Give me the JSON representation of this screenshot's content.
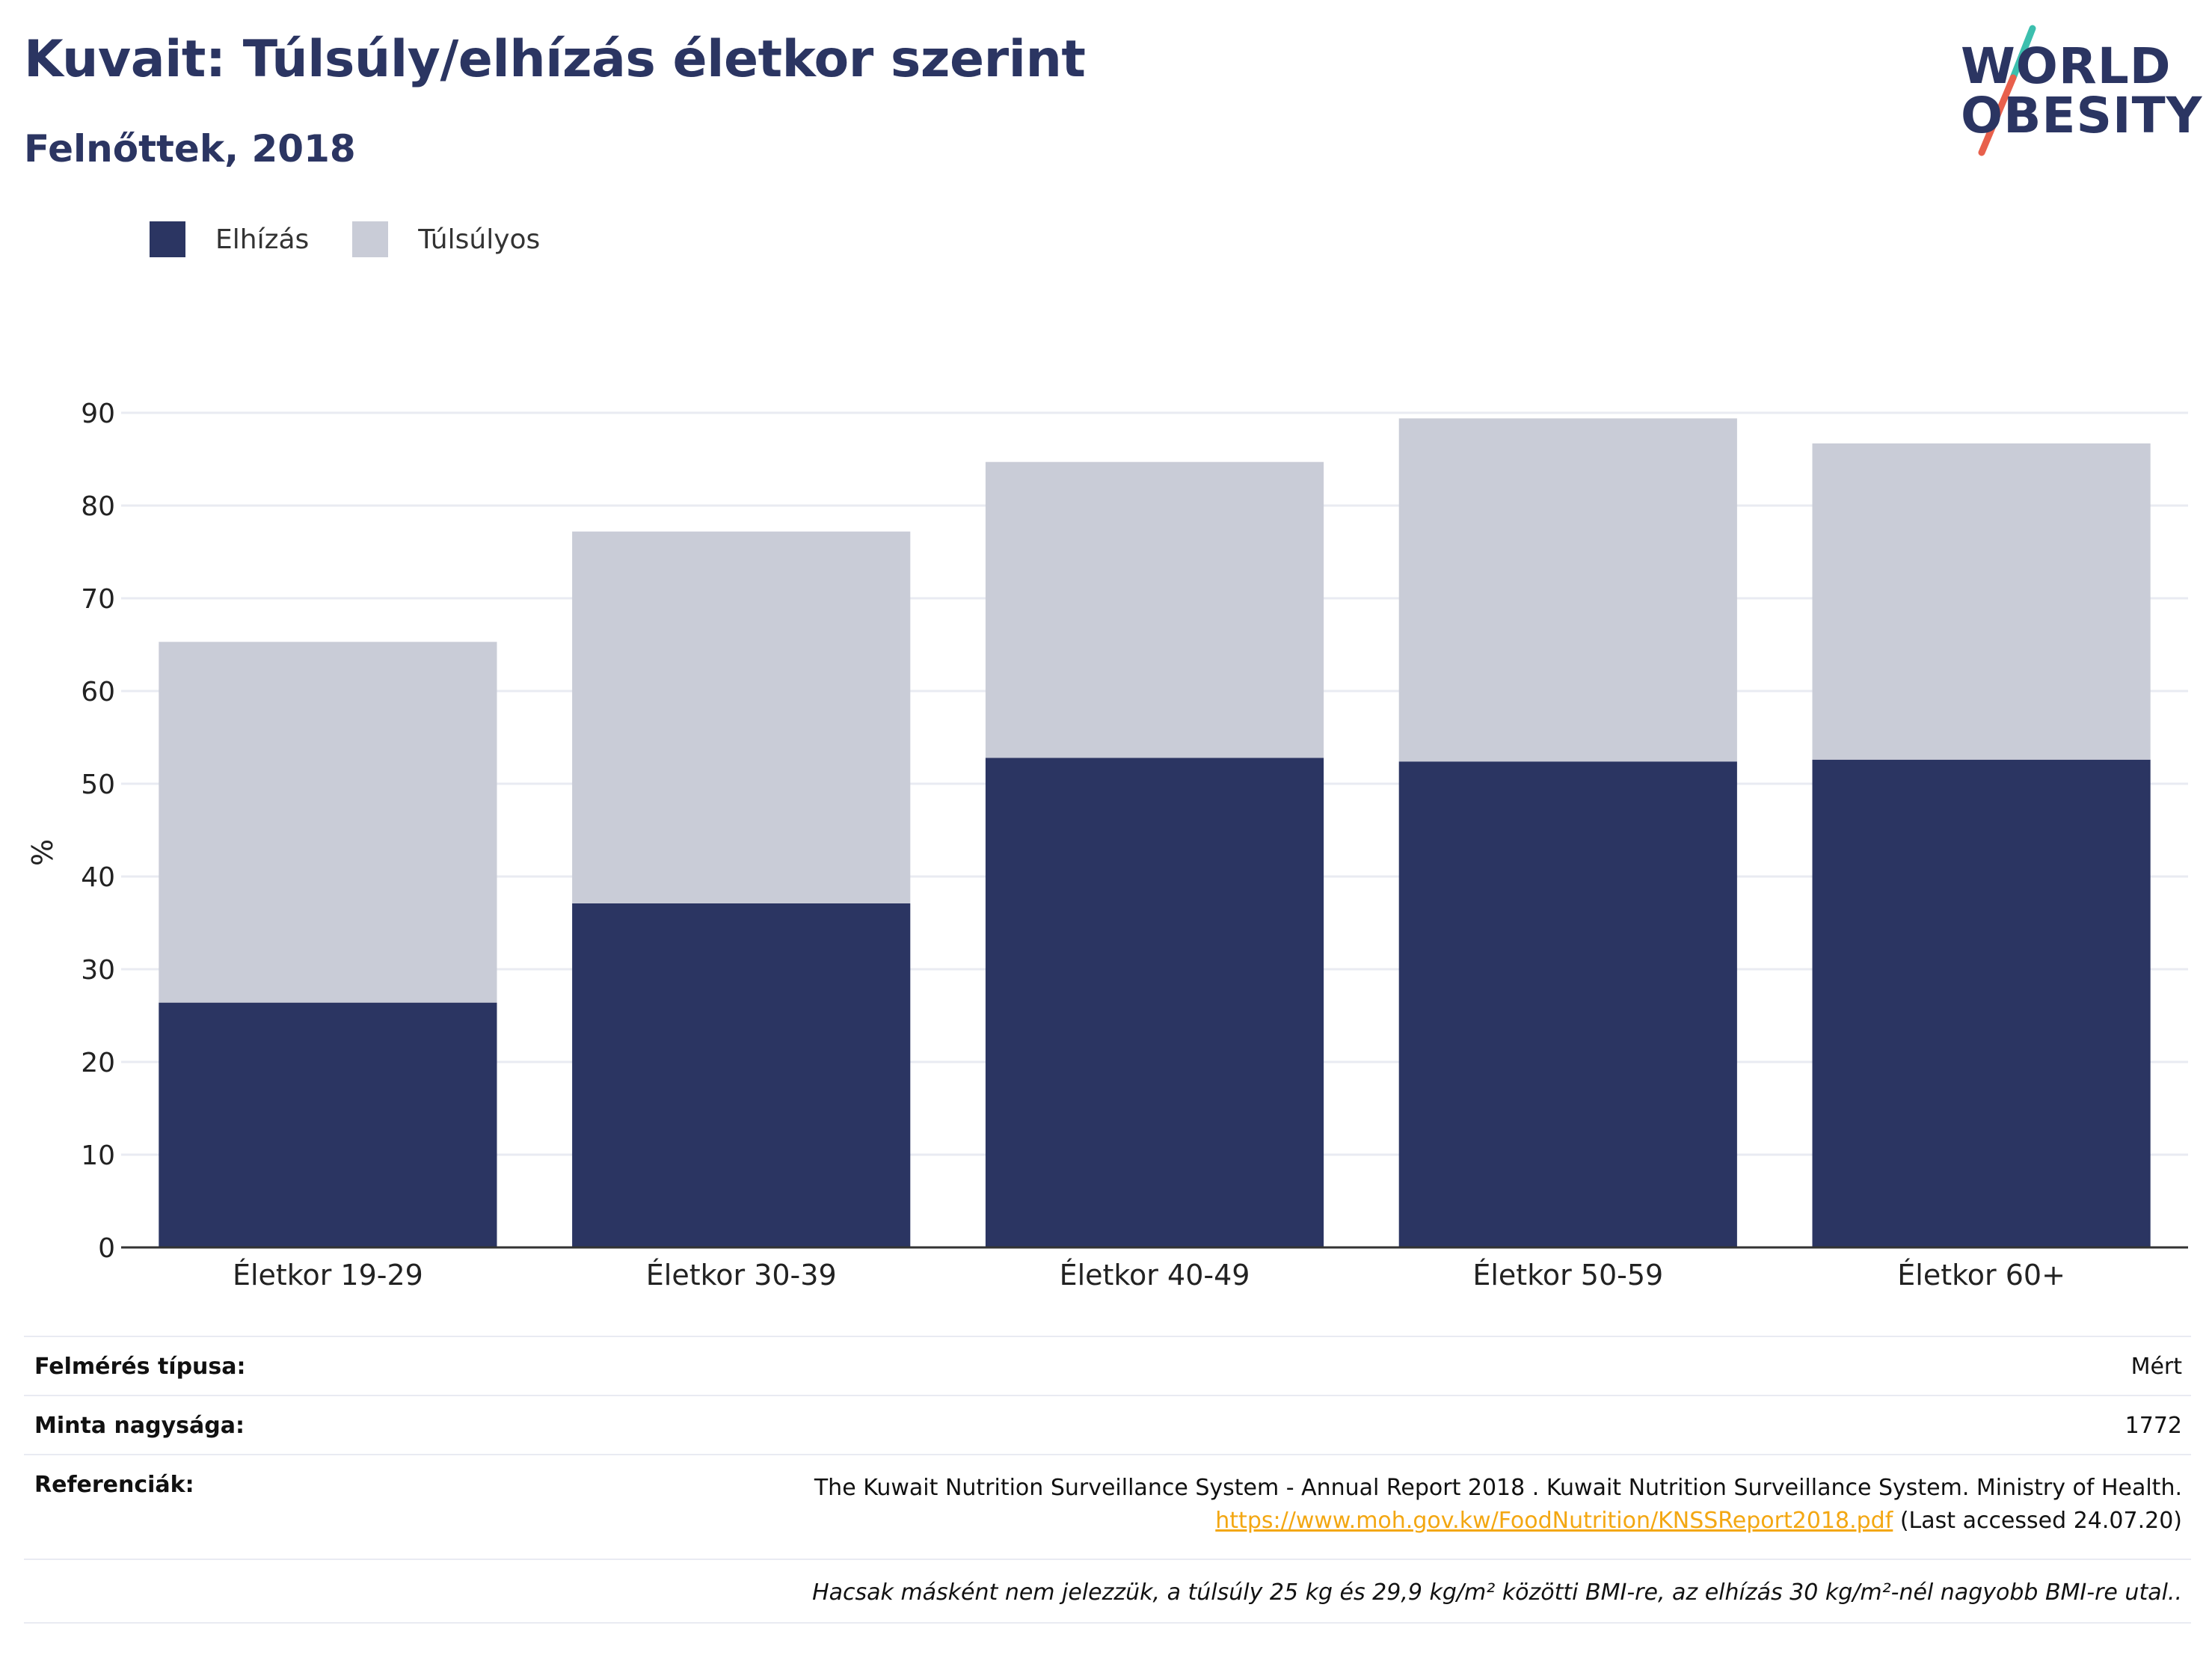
{
  "header": {
    "title": "Kuvait: Túlsúly/elhízás életkor szerint",
    "subtitle": "Felnőttek, 2018"
  },
  "logo": {
    "line1": "WORLD",
    "line2": "OBESITY",
    "colors": {
      "text": "#2b3562",
      "slash_top": "#3cbfae",
      "slash_bottom": "#e8604c"
    }
  },
  "colors": {
    "obesity": "#2b3562",
    "overweight": "#c9ccd7",
    "grid": "#e9ebf2",
    "axis": "#333333"
  },
  "chart_data": {
    "type": "bar",
    "stacked": true,
    "categories": [
      "Életkor 19-29",
      "Életkor 30-39",
      "Életkor 40-49",
      "Életkor 50-59",
      "Életkor 60+"
    ],
    "series": [
      {
        "name": "Elhízás",
        "values": [
          26.4,
          37.1,
          52.8,
          52.4,
          52.6
        ]
      },
      {
        "name": "Túlsúlyos",
        "values": [
          38.9,
          40.1,
          31.9,
          37.0,
          34.1
        ]
      }
    ],
    "ylabel": "%",
    "ylim": [
      0,
      90
    ],
    "yticks": [
      0,
      10,
      20,
      30,
      40,
      50,
      60,
      70,
      80,
      90
    ],
    "grid": true,
    "legend_position": "top-left"
  },
  "footer": {
    "survey_type_label": "Felmérés típusa:",
    "survey_type_value": "Mért",
    "sample_size_label": "Minta nagysága:",
    "sample_size_value": "1772",
    "references_label": "Referenciák:",
    "reference_text": "The Kuwait Nutrition Surveillance System - Annual Report 2018 . Kuwait Nutrition Surveillance System. Ministry of Health.",
    "reference_link": "https://www.moh.gov.kw/FoodNutrition/KNSSReport2018.pdf",
    "reference_accessed": " (Last accessed 24.07.20)",
    "note": "Hacsak másként nem jelezzük, a túlsúly 25 kg és 29,9 kg/m² közötti BMI-re, az elhízás 30 kg/m²-nél nagyobb BMI-re utal.."
  }
}
